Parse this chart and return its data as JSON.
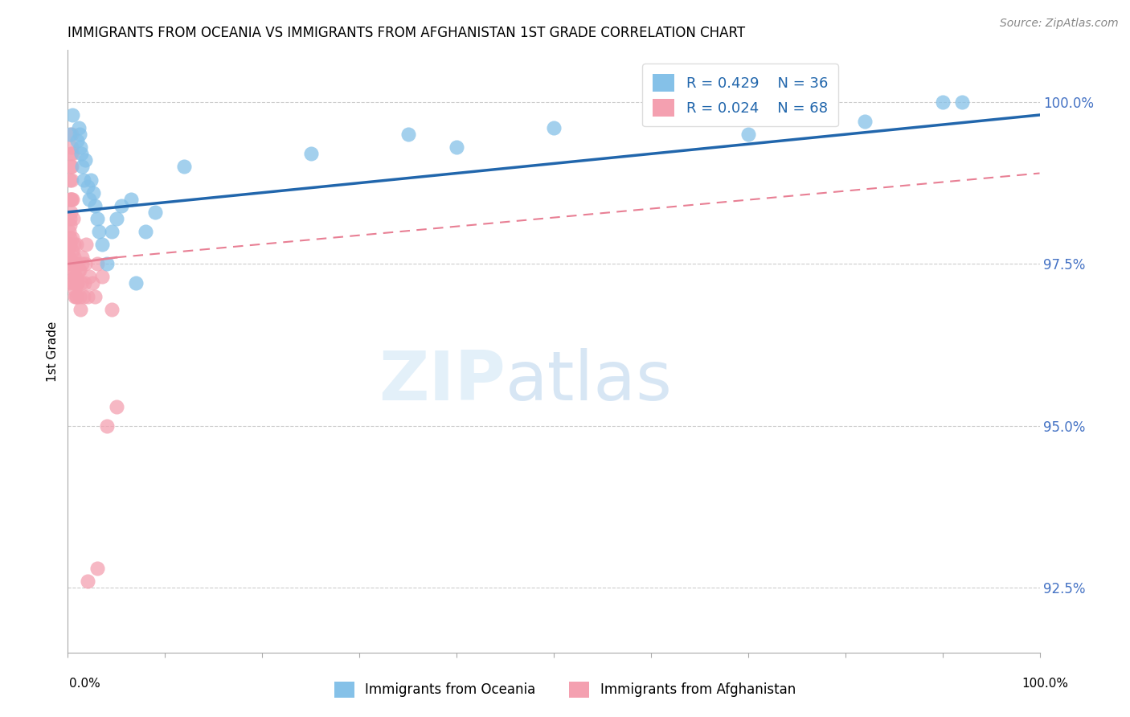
{
  "title": "IMMIGRANTS FROM OCEANIA VS IMMIGRANTS FROM AFGHANISTAN 1ST GRADE CORRELATION CHART",
  "source": "Source: ZipAtlas.com",
  "ylabel": "1st Grade",
  "ylabel_values": [
    92.5,
    95.0,
    97.5,
    100.0
  ],
  "xmin": 0.0,
  "xmax": 100.0,
  "ymin": 91.5,
  "ymax": 100.8,
  "R_oceania": 0.429,
  "N_oceania": 36,
  "R_afghanistan": 0.024,
  "N_afghanistan": 68,
  "color_oceania": "#85c1e8",
  "color_afghanistan": "#f4a0b0",
  "color_trendline_oceania": "#2166ac",
  "color_trendline_afghanistan": "#e87f94",
  "legend_label_oceania": "Immigrants from Oceania",
  "legend_label_afghanistan": "Immigrants from Afghanistan",
  "oceania_x": [
    0.2,
    0.5,
    1.0,
    1.1,
    1.2,
    1.3,
    1.4,
    1.5,
    1.6,
    1.8,
    2.0,
    2.2,
    2.4,
    2.6,
    2.8,
    3.0,
    3.2,
    3.5,
    4.0,
    4.5,
    5.0,
    5.5,
    6.5,
    7.0,
    8.0,
    9.0,
    12.0,
    25.0,
    35.0,
    40.0,
    50.0,
    60.0,
    70.0,
    82.0,
    90.0,
    92.0
  ],
  "oceania_y": [
    99.5,
    99.8,
    99.4,
    99.6,
    99.5,
    99.3,
    99.2,
    99.0,
    98.8,
    99.1,
    98.7,
    98.5,
    98.8,
    98.6,
    98.4,
    98.2,
    98.0,
    97.8,
    97.5,
    98.0,
    98.2,
    98.4,
    98.5,
    97.2,
    98.0,
    98.3,
    99.0,
    99.2,
    99.5,
    99.3,
    99.6,
    99.8,
    99.5,
    99.7,
    100.0,
    100.0
  ],
  "afghanistan_x": [
    0.05,
    0.07,
    0.08,
    0.1,
    0.12,
    0.15,
    0.18,
    0.2,
    0.22,
    0.25,
    0.28,
    0.3,
    0.32,
    0.35,
    0.38,
    0.4,
    0.42,
    0.45,
    0.5,
    0.55,
    0.6,
    0.65,
    0.7,
    0.75,
    0.8,
    0.85,
    0.9,
    1.0,
    1.1,
    1.2,
    1.3,
    1.4,
    1.5,
    1.6,
    1.7,
    1.8,
    1.9,
    2.0,
    2.2,
    2.5,
    2.8,
    3.0,
    3.5,
    4.0,
    4.5,
    5.0,
    0.1,
    0.15,
    0.2,
    0.25,
    0.3,
    0.35,
    0.4,
    0.45,
    0.5,
    0.55,
    0.6,
    0.65,
    0.7,
    0.75,
    0.8,
    0.85,
    0.9,
    1.0,
    1.2,
    1.5,
    2.0,
    3.0
  ],
  "afghanistan_y": [
    97.5,
    97.8,
    97.6,
    97.4,
    98.0,
    97.2,
    98.2,
    98.5,
    97.8,
    98.8,
    99.0,
    99.2,
    98.5,
    99.3,
    99.5,
    99.0,
    98.8,
    99.2,
    98.5,
    98.2,
    97.8,
    97.5,
    97.2,
    97.0,
    97.3,
    97.5,
    97.0,
    97.2,
    97.4,
    97.0,
    96.8,
    97.2,
    97.5,
    97.0,
    97.2,
    97.5,
    97.8,
    97.0,
    97.3,
    97.2,
    97.0,
    97.5,
    97.3,
    95.0,
    96.8,
    95.3,
    97.6,
    97.8,
    97.9,
    98.1,
    98.3,
    98.5,
    97.5,
    97.7,
    97.9,
    97.2,
    97.4,
    97.6,
    97.1,
    97.3,
    97.5,
    97.8,
    97.0,
    97.2,
    97.4,
    97.6,
    92.6,
    92.8
  ],
  "trendline_oceania_x0": 0.0,
  "trendline_oceania_x1": 100.0,
  "trendline_oceania_y0": 98.3,
  "trendline_oceania_y1": 99.8,
  "trendline_afghanistan_solid_x0": 0.0,
  "trendline_afghanistan_solid_x1": 5.0,
  "trendline_afghanistan_solid_y0": 97.5,
  "trendline_afghanistan_solid_y1": 97.6,
  "trendline_afghanistan_dash_x0": 5.0,
  "trendline_afghanistan_dash_x1": 100.0,
  "trendline_afghanistan_dash_y0": 97.6,
  "trendline_afghanistan_dash_y1": 98.9
}
